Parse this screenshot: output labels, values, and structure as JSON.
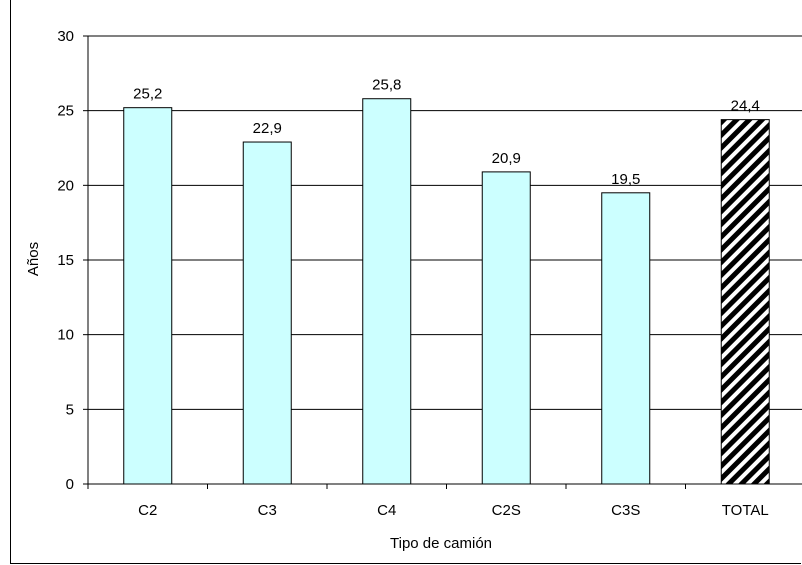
{
  "chart_data": {
    "type": "bar",
    "categories": [
      "C2",
      "C3",
      "C4",
      "C2S",
      "C3S",
      "TOTAL"
    ],
    "values": [
      25.2,
      22.9,
      25.8,
      20.9,
      19.5,
      24.4
    ],
    "value_labels": [
      "25,2",
      "22,9",
      "25,8",
      "20,9",
      "19,5",
      "24,4"
    ],
    "title": "",
    "xlabel": "Tipo de camión",
    "ylabel": "Años",
    "ylim": [
      0,
      30
    ],
    "yticks": [
      "0",
      "5",
      "10",
      "15",
      "20",
      "25",
      "30"
    ],
    "grid": true,
    "legend": "none",
    "bar_color": "#ccffff",
    "highlight_bar": "TOTAL",
    "highlight_pattern": "diagonal-stripes-black"
  }
}
